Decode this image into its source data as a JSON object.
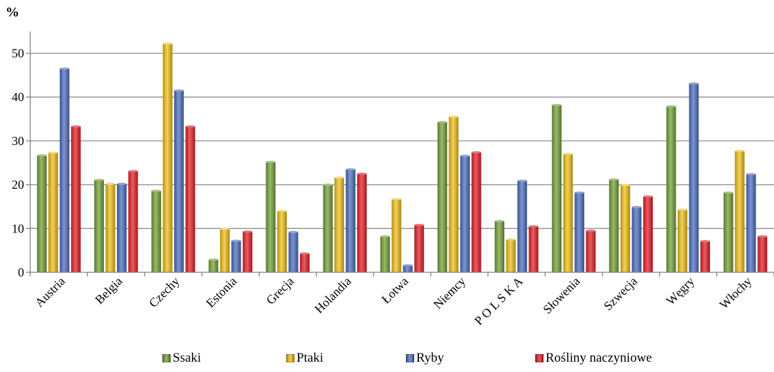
{
  "chart_data": {
    "type": "bar",
    "ylabel": "%",
    "ylim": [
      0,
      55
    ],
    "yticks": [
      0,
      10,
      20,
      30,
      40,
      50
    ],
    "grid": true,
    "legend_position": "bottom",
    "categories": [
      "Austria",
      "Belgia",
      "Czechy",
      "Estonia",
      "Grecja",
      "Holandia",
      "Łotwa",
      "Niemcy",
      "P O L S K A",
      "Słowenia",
      "Szwecja",
      "Węgry",
      "Włochy"
    ],
    "series": [
      {
        "name": "Ssaki",
        "color": "#77a33a",
        "values": [
          26.7,
          21.1,
          18.6,
          2.9,
          25.2,
          20.0,
          8.2,
          34.3,
          11.7,
          38.2,
          21.2,
          37.9,
          18.2
        ]
      },
      {
        "name": "Ptaki",
        "color": "#f2c21c",
        "values": [
          27.3,
          20.2,
          52.2,
          9.9,
          14.0,
          21.6,
          16.7,
          35.5,
          7.5,
          27.0,
          19.9,
          14.3,
          27.7
        ]
      },
      {
        "name": "Ryby",
        "color": "#4d72c2",
        "values": [
          46.5,
          20.2,
          41.5,
          7.2,
          9.2,
          23.5,
          1.6,
          26.6,
          20.9,
          18.2,
          14.9,
          43.1,
          22.4
        ]
      },
      {
        "name": "Rośliny naczyniowe",
        "color": "#e8222a",
        "values": [
          33.3,
          23.1,
          33.3,
          9.3,
          4.3,
          22.5,
          10.8,
          27.4,
          10.5,
          9.5,
          17.3,
          7.1,
          8.2
        ]
      }
    ]
  }
}
